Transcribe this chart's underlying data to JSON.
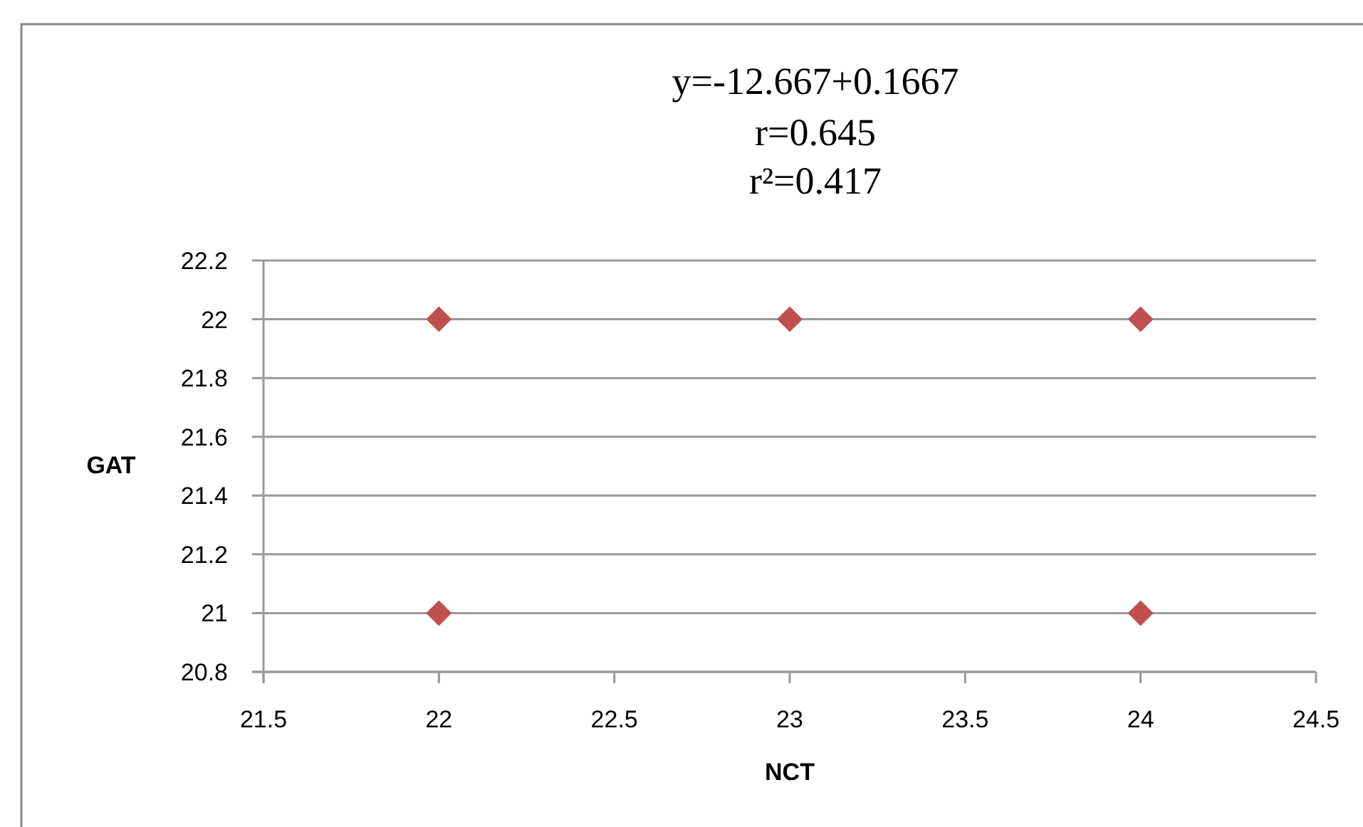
{
  "chart_data": {
    "type": "scatter",
    "title": "y=-12.667+0.1667",
    "annotations": [
      "r=0.645",
      "r²=0.417"
    ],
    "xlabel": "NCT",
    "ylabel": "GAT",
    "x": [
      22,
      23,
      24,
      22,
      24
    ],
    "series": [
      {
        "color": "#c0504d",
        "values": [
          22,
          22,
          22,
          21,
          21
        ]
      }
    ],
    "xlim": [
      21.5,
      24.5
    ],
    "xticks": [
      21.5,
      22,
      22.5,
      23,
      23.5,
      24,
      24.5
    ],
    "ylim": [
      20.8,
      22.2
    ],
    "yticks": [
      20.8,
      21,
      21.2,
      21.4,
      21.6,
      21.8,
      22,
      22.2
    ],
    "grid": "y",
    "marker": "diamond"
  }
}
